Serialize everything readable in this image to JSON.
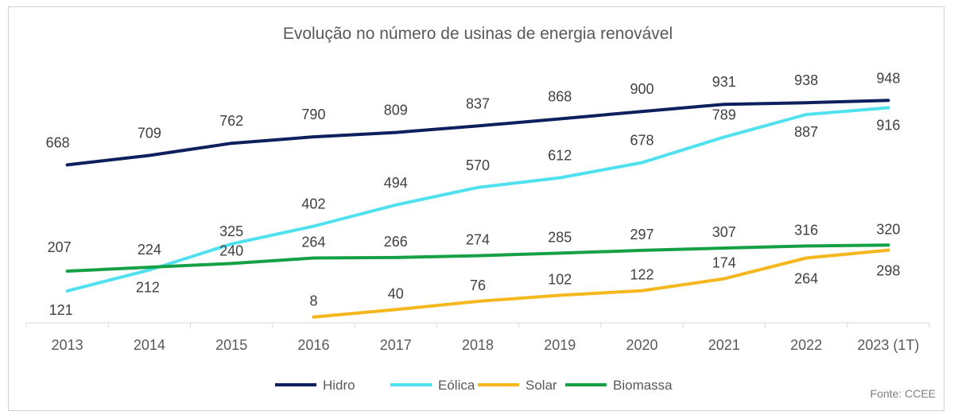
{
  "chart_data": {
    "type": "line",
    "title": "Evolução no número de usinas de energia renovável",
    "xlabel": "",
    "ylabel": "",
    "categories": [
      "2013",
      "2014",
      "2015",
      "2016",
      "2017",
      "2018",
      "2019",
      "2020",
      "2021",
      "2022",
      "2023 (1T)"
    ],
    "series": [
      {
        "name": "Hidro",
        "color": "#0d1f5c",
        "values": [
          668,
          709,
          762,
          790,
          809,
          837,
          868,
          900,
          931,
          938,
          948
        ]
      },
      {
        "name": "Eólica",
        "color": "#4fe1ef",
        "values": [
          121,
          212,
          325,
          402,
          494,
          570,
          612,
          678,
          789,
          887,
          916
        ]
      },
      {
        "name": "Solar",
        "color": "#f5b71e",
        "values": [
          null,
          null,
          null,
          8,
          40,
          76,
          102,
          122,
          174,
          264,
          298
        ]
      },
      {
        "name": "Biomassa",
        "color": "#15a045",
        "values": [
          207,
          224,
          240,
          264,
          266,
          274,
          285,
          297,
          307,
          316,
          320
        ]
      }
    ],
    "grid": false,
    "legend_position": "bottom",
    "source": "Fonte: CCEE"
  }
}
